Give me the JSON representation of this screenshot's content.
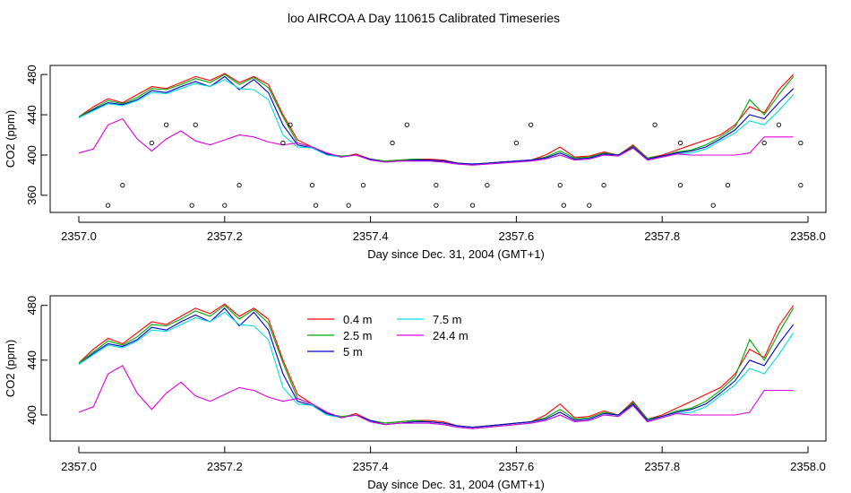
{
  "title": "loo AIRCOA A  Day 110615  Calibrated Timeseries",
  "chart_data": [
    {
      "type": "line",
      "title": "",
      "xlabel": "Day since Dec. 31, 2004 (GMT+1)",
      "ylabel": "CO2 (ppm)",
      "xlim": [
        2357.0,
        2358.0
      ],
      "ylim": [
        343,
        489
      ],
      "xticks": [
        "2357.0",
        "2357.2",
        "2357.4",
        "2357.6",
        "2357.8",
        "2358.0"
      ],
      "yticks": [
        "360",
        "400",
        "440",
        "480"
      ],
      "xtick_values": [
        2357.0,
        2357.2,
        2357.4,
        2357.6,
        2357.8,
        2358.0
      ],
      "ytick_values": [
        360,
        400,
        440,
        480
      ],
      "grid": false,
      "x": [
        2357.0,
        2357.02,
        2357.04,
        2357.06,
        2357.08,
        2357.1,
        2357.12,
        2357.14,
        2357.16,
        2357.18,
        2357.2,
        2357.22,
        2357.24,
        2357.26,
        2357.28,
        2357.3,
        2357.32,
        2357.34,
        2357.36,
        2357.38,
        2357.4,
        2357.42,
        2357.44,
        2357.46,
        2357.48,
        2357.5,
        2357.52,
        2357.54,
        2357.56,
        2357.58,
        2357.6,
        2357.62,
        2357.64,
        2357.66,
        2357.68,
        2357.7,
        2357.72,
        2357.74,
        2357.76,
        2357.78,
        2357.8,
        2357.82,
        2357.84,
        2357.86,
        2357.88,
        2357.9,
        2357.92,
        2357.94,
        2357.96,
        2357.98
      ],
      "series": [
        {
          "name": "0.4 m",
          "color": "#ff0000",
          "values": [
            438,
            448,
            456,
            452,
            460,
            468,
            466,
            472,
            478,
            474,
            481,
            472,
            478,
            470,
            440,
            415,
            408,
            402,
            398,
            401,
            396,
            394,
            395,
            396,
            396,
            395,
            392,
            391,
            392,
            393,
            394,
            395,
            400,
            408,
            398,
            399,
            403,
            400,
            410,
            397,
            400,
            405,
            410,
            415,
            420,
            430,
            448,
            442,
            465,
            480
          ]
        },
        {
          "name": "2.5 m",
          "color": "#00aa00",
          "values": [
            438,
            446,
            454,
            451,
            457,
            466,
            465,
            470,
            476,
            472,
            480,
            470,
            477,
            467,
            438,
            412,
            408,
            401,
            399,
            400,
            396,
            394,
            395,
            396,
            395,
            394,
            392,
            391,
            392,
            393,
            394,
            395,
            398,
            404,
            397,
            398,
            402,
            400,
            409,
            397,
            399,
            403,
            405,
            410,
            418,
            428,
            455,
            440,
            460,
            478
          ]
        },
        {
          "name": "5 m",
          "color": "#0000cc",
          "values": [
            437,
            445,
            452,
            450,
            455,
            464,
            462,
            468,
            473,
            468,
            478,
            465,
            475,
            462,
            430,
            410,
            407,
            401,
            398,
            400,
            396,
            393,
            394,
            395,
            395,
            394,
            392,
            391,
            392,
            393,
            394,
            395,
            397,
            402,
            396,
            397,
            401,
            400,
            408,
            396,
            399,
            402,
            404,
            408,
            416,
            425,
            440,
            436,
            452,
            466
          ]
        },
        {
          "name": "7.5 m",
          "color": "#00dddd",
          "values": [
            437,
            444,
            451,
            449,
            454,
            462,
            461,
            466,
            471,
            468,
            475,
            466,
            465,
            455,
            420,
            408,
            407,
            400,
            398,
            400,
            395,
            393,
            394,
            394,
            394,
            393,
            391,
            390,
            391,
            392,
            393,
            394,
            396,
            400,
            395,
            396,
            400,
            399,
            407,
            395,
            398,
            401,
            402,
            406,
            414,
            422,
            434,
            430,
            444,
            460
          ]
        },
        {
          "name": "24.4 m",
          "color": "#dd00dd",
          "values": [
            402,
            406,
            430,
            436,
            416,
            404,
            416,
            424,
            414,
            410,
            415,
            420,
            418,
            413,
            410,
            412,
            408,
            402,
            398,
            400,
            395,
            393,
            394,
            394,
            394,
            393,
            391,
            390,
            391,
            392,
            393,
            394,
            396,
            400,
            395,
            396,
            400,
            399,
            407,
            395,
            398,
            401,
            400,
            400,
            400,
            400,
            402,
            418,
            418,
            418
          ]
        }
      ],
      "points": {
        "x": [
          2357.04,
          2357.06,
          2357.1,
          2357.12,
          2357.155,
          2357.16,
          2357.2,
          2357.22,
          2357.28,
          2357.29,
          2357.32,
          2357.325,
          2357.37,
          2357.39,
          2357.43,
          2357.45,
          2357.49,
          2357.49,
          2357.54,
          2357.56,
          2357.6,
          2357.62,
          2357.66,
          2357.665,
          2357.7,
          2357.72,
          2357.79,
          2357.825,
          2357.825,
          2357.87,
          2357.89,
          2357.94,
          2357.96,
          2357.99,
          2357.99
        ],
        "values": [
          350,
          370,
          412,
          430,
          350,
          430,
          350,
          370,
          412,
          430,
          370,
          350,
          350,
          370,
          412,
          430,
          370,
          350,
          350,
          370,
          412,
          430,
          370,
          350,
          350,
          370,
          430,
          412,
          370,
          350,
          370,
          412,
          430,
          412,
          370
        ]
      }
    },
    {
      "type": "line",
      "title": "",
      "xlabel": "Day since Dec. 31, 2004 (GMT+1)",
      "ylabel": "CO2 (ppm)",
      "xlim": [
        2357.0,
        2358.0
      ],
      "ylim": [
        381,
        487
      ],
      "xticks": [
        "2357.0",
        "2357.2",
        "2357.4",
        "2357.6",
        "2357.8",
        "2358.0"
      ],
      "yticks": [
        "400",
        "440",
        "480"
      ],
      "xtick_values": [
        2357.0,
        2357.2,
        2357.4,
        2357.6,
        2357.8,
        2358.0
      ],
      "ytick_values": [
        400,
        440,
        480
      ],
      "grid": false,
      "legend": "top-center",
      "series_ref": "same as first panel"
    }
  ]
}
